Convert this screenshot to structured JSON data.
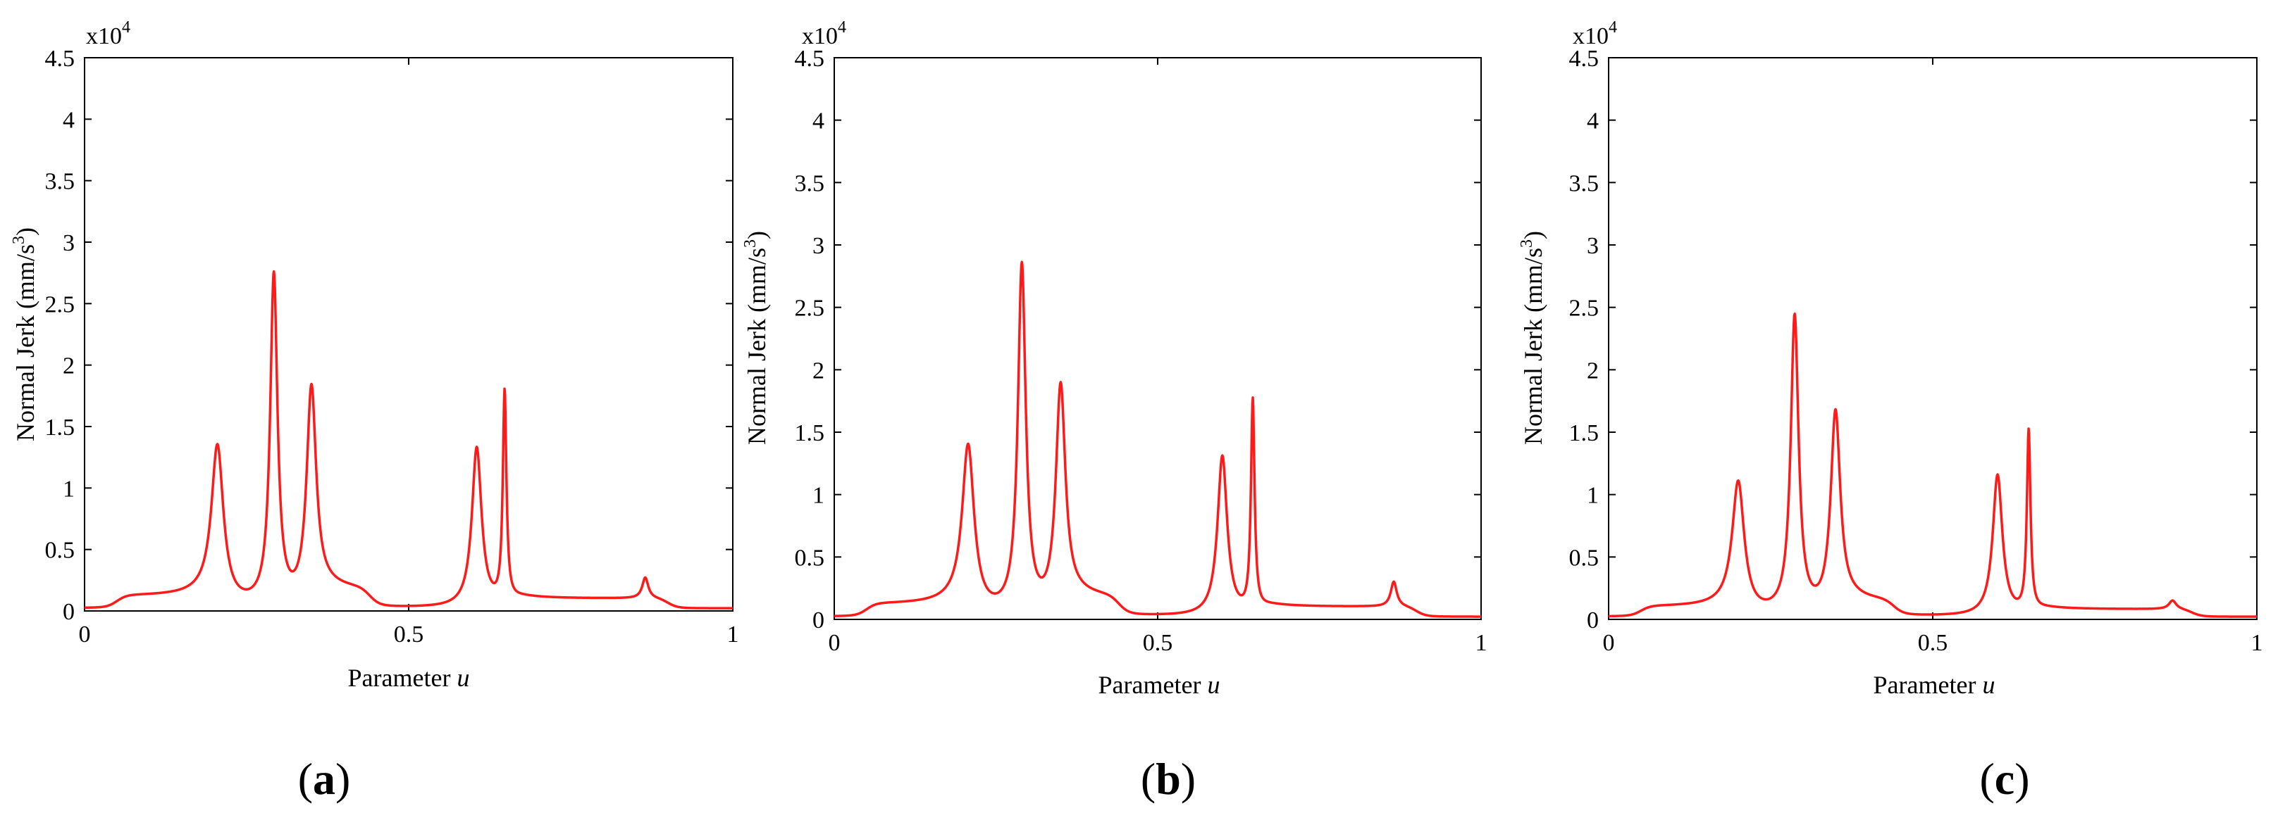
{
  "figure": {
    "panel_labels": [
      {
        "open": "(",
        "letter": "a",
        "close": ")"
      },
      {
        "open": "(",
        "letter": "b",
        "close": ")"
      },
      {
        "open": "(",
        "letter": "c",
        "close": ")"
      }
    ]
  },
  "chart_data": [
    {
      "type": "line",
      "title": "",
      "xlabel_main": "Parameter ",
      "xlabel_var": "u",
      "ylabel": "Normal Jerk (mm/s",
      "ylabel_sup": "3",
      "ylabel_close": ")",
      "y_multiplier_base": "x10",
      "y_multiplier_exp": "4",
      "xlim": [
        0,
        1
      ],
      "ylim": [
        0,
        4.5
      ],
      "x_ticks": [
        "0",
        "0.5",
        "1"
      ],
      "y_ticks": [
        "0",
        "0.5",
        "1",
        "1.5",
        "2",
        "2.5",
        "3",
        "3.5",
        "4",
        "4.5"
      ],
      "color": "#ff1a1a",
      "baseline": 0.02,
      "peaks": [
        {
          "u": 0.205,
          "height": 1.28,
          "width": 0.02
        },
        {
          "u": 0.292,
          "height": 2.68,
          "width": 0.012
        },
        {
          "u": 0.35,
          "height": 1.75,
          "width": 0.016
        },
        {
          "u": 0.605,
          "height": 1.3,
          "width": 0.016
        },
        {
          "u": 0.648,
          "height": 1.72,
          "width": 0.006
        },
        {
          "u": 0.865,
          "height": 0.17,
          "width": 0.01
        }
      ],
      "plateaus": [
        {
          "from": 0.05,
          "to": 0.2,
          "level": 0.1
        },
        {
          "from": 0.36,
          "to": 0.44,
          "level": 0.15
        },
        {
          "from": 0.66,
          "to": 0.9,
          "level": 0.08
        }
      ]
    },
    {
      "type": "line",
      "title": "",
      "xlabel_main": "Parameter ",
      "xlabel_var": "u",
      "ylabel": "Normal Jerk (mm/s",
      "ylabel_sup": "3",
      "ylabel_close": ")",
      "y_multiplier_base": "x10",
      "y_multiplier_exp": "4",
      "xlim": [
        0,
        1
      ],
      "ylim": [
        0,
        4.5
      ],
      "x_ticks": [
        "0",
        "0.5",
        "1"
      ],
      "y_ticks": [
        "0",
        "0.5",
        "1",
        "1.5",
        "2",
        "2.5",
        "3",
        "3.5",
        "4",
        "4.5"
      ],
      "color": "#ff1a1a",
      "baseline": 0.02,
      "peaks": [
        {
          "u": 0.207,
          "height": 1.33,
          "width": 0.02
        },
        {
          "u": 0.29,
          "height": 2.78,
          "width": 0.013
        },
        {
          "u": 0.35,
          "height": 1.8,
          "width": 0.016
        },
        {
          "u": 0.6,
          "height": 1.28,
          "width": 0.016
        },
        {
          "u": 0.647,
          "height": 1.7,
          "width": 0.006
        },
        {
          "u": 0.865,
          "height": 0.2,
          "width": 0.01
        }
      ],
      "plateaus": [
        {
          "from": 0.05,
          "to": 0.2,
          "level": 0.1
        },
        {
          "from": 0.36,
          "to": 0.44,
          "level": 0.15
        },
        {
          "from": 0.66,
          "to": 0.9,
          "level": 0.08
        }
      ]
    },
    {
      "type": "line",
      "title": "",
      "xlabel_main": "Parameter ",
      "xlabel_var": "u",
      "ylabel": "Normal Jerk (mm/s",
      "ylabel_sup": "3",
      "ylabel_close": ")",
      "y_multiplier_base": "x10",
      "y_multiplier_exp": "4",
      "xlim": [
        0,
        1
      ],
      "ylim": [
        0,
        4.5
      ],
      "x_ticks": [
        "0",
        "0.5",
        "1"
      ],
      "y_ticks": [
        "0",
        "0.5",
        "1",
        "1.5",
        "2",
        "2.5",
        "3",
        "3.5",
        "4",
        "4.5"
      ],
      "color": "#ff1a1a",
      "baseline": 0.02,
      "peaks": [
        {
          "u": 0.2,
          "height": 1.03,
          "width": 0.02
        },
        {
          "u": 0.287,
          "height": 2.38,
          "width": 0.013
        },
        {
          "u": 0.35,
          "height": 1.6,
          "width": 0.016
        },
        {
          "u": 0.6,
          "height": 1.13,
          "width": 0.016
        },
        {
          "u": 0.648,
          "height": 1.46,
          "width": 0.006
        },
        {
          "u": 0.87,
          "height": 0.07,
          "width": 0.012
        }
      ],
      "plateaus": [
        {
          "from": 0.05,
          "to": 0.2,
          "level": 0.08
        },
        {
          "from": 0.36,
          "to": 0.44,
          "level": 0.12
        },
        {
          "from": 0.66,
          "to": 0.9,
          "level": 0.06
        }
      ]
    }
  ]
}
